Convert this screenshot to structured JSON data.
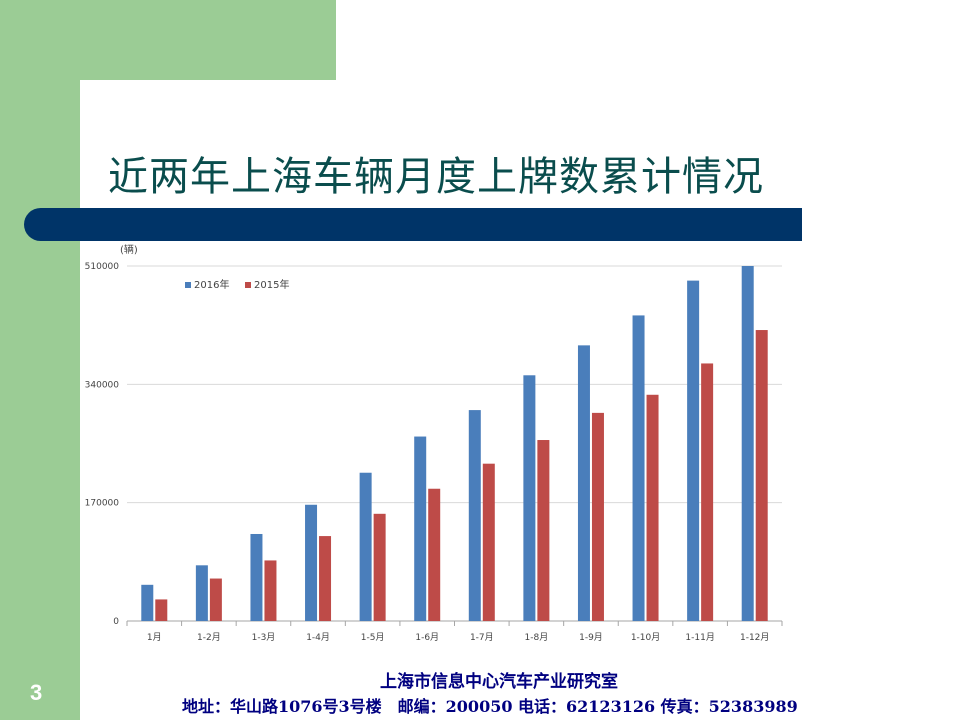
{
  "slide": {
    "title": "近两年上海车辆月度上牌数累计情况",
    "page_number": "3",
    "footer_line1": "上海市信息中心汽车产业研究室",
    "footer_line2": "地址：华山路1076号3号楼　邮编：200050  电话：62123126  传真：52383989"
  },
  "colors": {
    "green": "#9bcc95",
    "navy": "#003468",
    "title_teal": "#0a4d4d",
    "footer_blue": "#000080",
    "series_2016": "#4a7ebb",
    "series_2015": "#be4b48"
  },
  "chart_data": {
    "type": "bar",
    "ylabel": "(辆)",
    "ylim": [
      0,
      510000
    ],
    "yticks": [
      "0",
      "170000",
      "340000",
      "510000"
    ],
    "grid": true,
    "legend_position": "top-left",
    "categories": [
      "1月",
      "1-2月",
      "1-3月",
      "1-4月",
      "1-5月",
      "1-6月",
      "1-7月",
      "1-8月",
      "1-9月",
      "1-10月",
      "1-11月",
      "1-12月"
    ],
    "series": [
      {
        "name": "2016年",
        "color": "#4a7ebb",
        "values": [
          52000,
          80000,
          125000,
          167000,
          213000,
          265000,
          303000,
          353000,
          396000,
          439000,
          489000,
          510000
        ]
      },
      {
        "name": "2015年",
        "color": "#be4b48",
        "values": [
          31000,
          61000,
          87000,
          122000,
          154000,
          190000,
          226000,
          260000,
          299000,
          325000,
          370000,
          418000
        ]
      }
    ]
  }
}
